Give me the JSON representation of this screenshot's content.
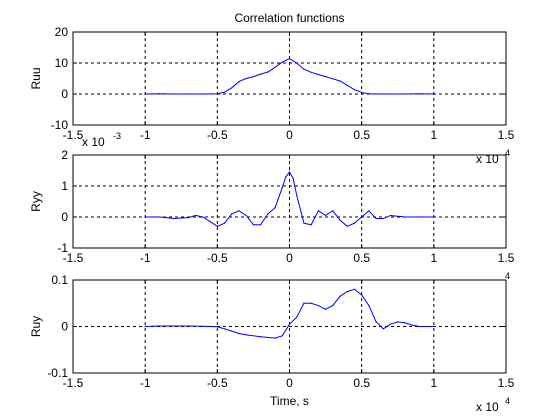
{
  "chart_data": [
    {
      "type": "line",
      "title": "Correlation functions",
      "ylabel": "Ruu",
      "xlabel": "",
      "xlim": [
        -15000,
        15000
      ],
      "ylim": [
        -10,
        20
      ],
      "xticks": [
        -1.5,
        -1,
        -0.5,
        0,
        0.5,
        1,
        1.5
      ],
      "xtick_labels": [
        "-1.5",
        "-1",
        "-0.5",
        "0",
        "0.5",
        "1",
        "1.5"
      ],
      "yticks": [
        -10,
        0,
        10,
        20
      ],
      "ytick_labels": [
        "-10",
        "0",
        "10",
        "20"
      ],
      "x_multiplier": "x 10",
      "x_exponent": "4",
      "y_multiplier": "",
      "y_exponent": "",
      "grid": true,
      "color": "#0000ff",
      "series": [
        {
          "x": [
            -10000,
            -9000,
            -8000,
            -7000,
            -6000,
            -5000,
            -4500,
            -4000,
            -3500,
            -3000,
            -2500,
            -2000,
            -1500,
            -1000,
            -500,
            0,
            500,
            1000,
            1500,
            2000,
            2500,
            3000,
            3500,
            4000,
            4500,
            5000,
            5500,
            6000,
            7000,
            8000,
            9000,
            10000
          ],
          "values": [
            0,
            0.1,
            0,
            0,
            0,
            0.1,
            0.6,
            2.0,
            4.0,
            5.0,
            5.6,
            6.4,
            7.1,
            8.6,
            10.3,
            11.4,
            10.0,
            8.0,
            7.0,
            6.3,
            5.6,
            4.9,
            4.2,
            2.8,
            1.4,
            0.5,
            0.1,
            0,
            0,
            0,
            0.1,
            0
          ]
        }
      ]
    },
    {
      "type": "line",
      "title": "",
      "ylabel": "Ryy",
      "xlabel": "",
      "xlim": [
        -15000,
        15000
      ],
      "ylim": [
        -1,
        2
      ],
      "xticks": [
        -1.5,
        -1,
        -0.5,
        0,
        0.5,
        1,
        1.5
      ],
      "xtick_labels": [
        "-1.5",
        "-1",
        "-0.5",
        "0",
        "0.5",
        "1",
        "1.5"
      ],
      "yticks": [
        -1,
        0,
        1,
        2
      ],
      "ytick_labels": [
        "-1",
        "0",
        "1",
        "2"
      ],
      "x_multiplier": "",
      "x_exponent": "4",
      "y_multiplier": "x 10",
      "y_exponent": "-3",
      "grid": true,
      "color": "#0000ff",
      "series": [
        {
          "x": [
            -10000,
            -9000,
            -8000,
            -7000,
            -6500,
            -6000,
            -5500,
            -5000,
            -4500,
            -4000,
            -3500,
            -3000,
            -2500,
            -2000,
            -1500,
            -1000,
            -500,
            -250,
            0,
            250,
            500,
            1000,
            1500,
            2000,
            2500,
            3000,
            3500,
            4000,
            4500,
            5000,
            5500,
            6000,
            6500,
            7000,
            8000,
            9000,
            10000
          ],
          "values": [
            0,
            0,
            -0.05,
            -0.02,
            0.05,
            0,
            -0.15,
            -0.3,
            -0.2,
            0.1,
            0.2,
            0.05,
            -0.25,
            -0.25,
            0.1,
            0.3,
            0.95,
            1.3,
            1.45,
            1.25,
            0.7,
            -0.2,
            -0.25,
            0.2,
            0.05,
            0.2,
            -0.1,
            -0.3,
            -0.2,
            0,
            0.2,
            -0.05,
            -0.05,
            0.05,
            0,
            0,
            0
          ]
        }
      ]
    },
    {
      "type": "line",
      "title": "",
      "ylabel": "Ruy",
      "xlabel": "Time, s",
      "xlim": [
        -15000,
        15000
      ],
      "ylim": [
        -0.1,
        0.1
      ],
      "xticks": [
        -1.5,
        -1,
        -0.5,
        0,
        0.5,
        1,
        1.5
      ],
      "xtick_labels": [
        "-1.5",
        "-1",
        "-0.5",
        "0",
        "0.5",
        "1",
        "1.5"
      ],
      "yticks": [
        -0.1,
        0,
        0.1
      ],
      "ytick_labels": [
        "-0.1",
        "0",
        "0.1"
      ],
      "x_multiplier": "x 10",
      "x_exponent": "4",
      "y_multiplier": "",
      "y_exponent": "",
      "grid": true,
      "color": "#0000ff",
      "series": [
        {
          "x": [
            -10000,
            -9000,
            -8000,
            -7000,
            -6000,
            -5000,
            -4500,
            -4000,
            -3500,
            -3000,
            -2000,
            -1000,
            -500,
            0,
            500,
            1000,
            1500,
            2000,
            2500,
            3000,
            3500,
            4000,
            4500,
            5000,
            5500,
            6000,
            6500,
            7000,
            7500,
            8000,
            8500,
            9000,
            10000
          ],
          "values": [
            0,
            0.001,
            0.001,
            0.001,
            0.0005,
            -0.0005,
            -0.005,
            -0.01,
            -0.015,
            -0.018,
            -0.022,
            -0.025,
            -0.02,
            0.005,
            0.02,
            0.05,
            0.05,
            0.045,
            0.037,
            0.045,
            0.065,
            0.075,
            0.08,
            0.068,
            0.045,
            0.01,
            -0.005,
            0.005,
            0.01,
            0.008,
            0.003,
            0,
            0
          ]
        }
      ]
    }
  ]
}
